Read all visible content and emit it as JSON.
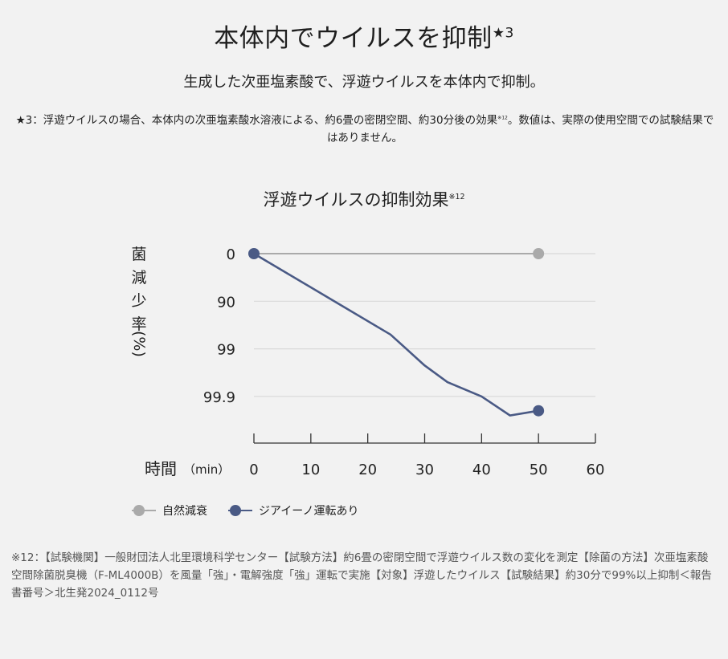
{
  "header": {
    "title": "本体内でウイルスを抑制",
    "title_note": "★3",
    "subtitle": "生成した次亜塩素酸で、浮遊ウイルスを本体内で抑制。",
    "footnote_star": "★3：浮遊ウイルスの場合、本体内の次亜塩素酸水溶液による、約6畳の密閉空間、約30分後の効果",
    "footnote_star_ref": "※12",
    "footnote_star_tail": "。数値は、実際の使用空間での試験結果ではありません。"
  },
  "chart_title": {
    "text": "浮遊ウイルスの抑制効果",
    "ref": "※12"
  },
  "chart_data": {
    "type": "line",
    "title": "浮遊ウイルスの抑制効果※12",
    "xlabel": "時間",
    "xlabel_unit": "（min）",
    "ylabel": "菌減少率",
    "ylabel_unit": "(%)",
    "x_ticks": [
      "0",
      "10",
      "20",
      "30",
      "40",
      "50",
      "60"
    ],
    "xlim": [
      0,
      60
    ],
    "y_ticks": [
      "0",
      "90",
      "99",
      "99.9"
    ],
    "y_scale": "log-reduction (0 = 0%, 1 = 90%, 2 = 99%, 3 = 99.9%)",
    "ylim_log": [
      0,
      4
    ],
    "grid": true,
    "series": [
      {
        "name": "自然減衰",
        "color": "#aaaaaa",
        "x": [
          0,
          50
        ],
        "log_reduction": [
          0,
          0
        ],
        "end_marker": true
      },
      {
        "name": "ジアイーノ運転あり",
        "color": "#4a5a85",
        "x": [
          0,
          24,
          30,
          34,
          40,
          45,
          50
        ],
        "log_reduction": [
          0,
          1.7,
          2.35,
          2.7,
          3.0,
          3.4,
          3.3
        ],
        "start_marker": true,
        "end_marker": true
      }
    ],
    "legend": "bottom-left"
  },
  "footnote_12": "※12：【試験機関】一般財団法人北里環境科学センター【試験方法】約6畳の密閉空間で浮遊ウイルス数の変化を測定【除菌の方法】次亜塩素酸 空間除菌脱臭機（F-ML4000B）を風量「強」・電解強度「強」運転で実施【対象】浮遊したウイルス【試験結果】約30分で99%以上抑制＜報告書番号＞北生発2024_0112号"
}
